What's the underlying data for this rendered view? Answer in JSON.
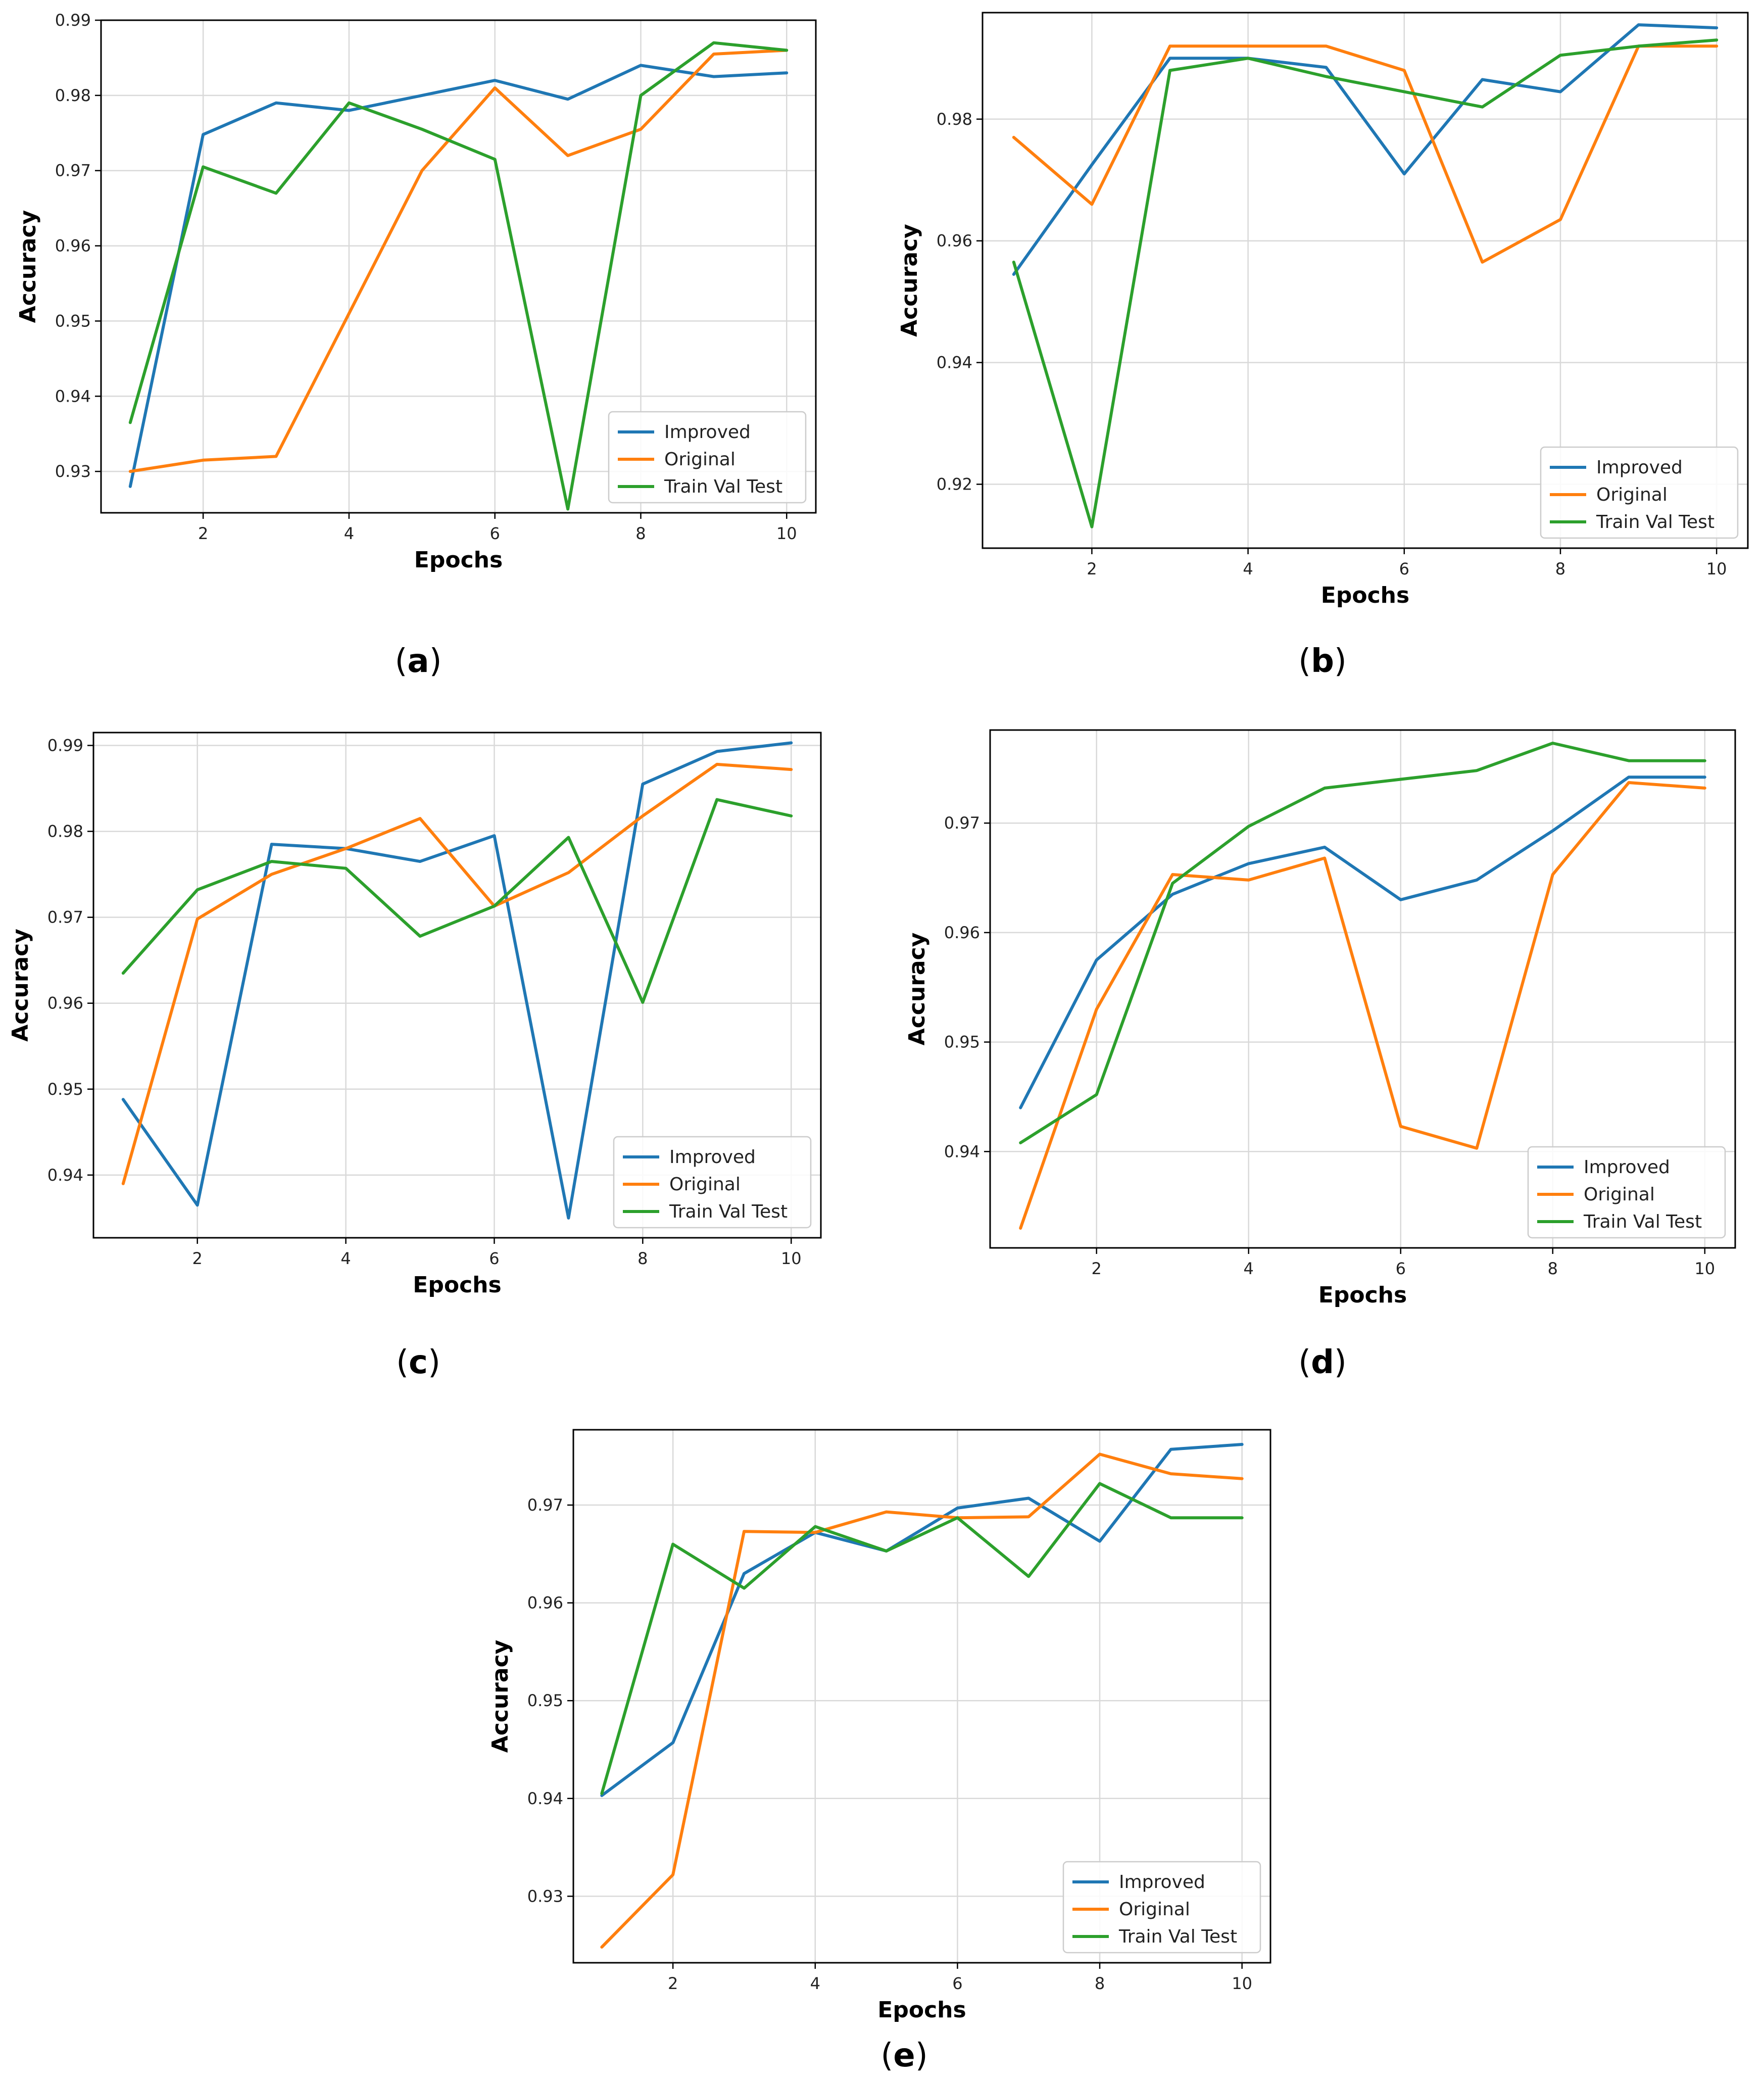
{
  "colors": {
    "Improved": "#1f77b4",
    "Original": "#ff7f0e",
    "Train Val Test": "#2ca02c"
  },
  "chart_data": [
    {
      "id": "a",
      "type": "line",
      "caption": "a",
      "xlabel": "Epochs",
      "ylabel": "Accuracy",
      "xlim": [
        0.6,
        10.4
      ],
      "ylim": [
        0.9245,
        0.99
      ],
      "xticks": [
        2,
        4,
        6,
        8,
        10
      ],
      "xtick_labels": [
        "2",
        "4",
        "6",
        "8",
        "10"
      ],
      "yticks": [
        0.93,
        0.94,
        0.95,
        0.96,
        0.97,
        0.98,
        0.99
      ],
      "ytick_labels": [
        "0.93",
        "0.94",
        "0.95",
        "0.96",
        "0.97",
        "0.98",
        "0.99"
      ],
      "legend": "lower right",
      "x": [
        1,
        2,
        3,
        4,
        5,
        6,
        7,
        8,
        9,
        10
      ],
      "series": [
        {
          "name": "Improved",
          "values": [
            0.928,
            0.9748,
            0.979,
            0.978,
            0.98,
            0.982,
            0.9795,
            0.984,
            0.9825,
            0.983
          ]
        },
        {
          "name": "Original",
          "values": [
            0.93,
            0.9315,
            0.932,
            0.951,
            0.97,
            0.981,
            0.972,
            0.9755,
            0.9855,
            0.986
          ]
        },
        {
          "name": "Train Val Test",
          "values": [
            0.9365,
            0.9705,
            0.967,
            0.979,
            0.9755,
            0.9715,
            0.925,
            0.98,
            0.987,
            0.986
          ]
        }
      ]
    },
    {
      "id": "b",
      "type": "line",
      "caption": "b",
      "xlabel": "Epochs",
      "ylabel": "Accuracy",
      "xlim": [
        0.6,
        10.4
      ],
      "ylim": [
        0.9095,
        0.9975
      ],
      "xticks": [
        2,
        4,
        6,
        8,
        10
      ],
      "xtick_labels": [
        "2",
        "4",
        "6",
        "8",
        "10"
      ],
      "yticks": [
        0.92,
        0.94,
        0.96,
        0.98
      ],
      "ytick_labels": [
        "0.92",
        "0.94",
        "0.96",
        "0.98"
      ],
      "legend": "lower right",
      "x": [
        1,
        2,
        3,
        4,
        5,
        6,
        7,
        8,
        9,
        10
      ],
      "series": [
        {
          "name": "Improved",
          "values": [
            0.9545,
            0.9725,
            0.99,
            0.99,
            0.9885,
            0.971,
            0.9865,
            0.9845,
            0.9955,
            0.995
          ]
        },
        {
          "name": "Original",
          "values": [
            0.977,
            0.966,
            0.992,
            0.992,
            0.992,
            0.988,
            0.9565,
            0.9635,
            0.992,
            0.992
          ]
        },
        {
          "name": "Train Val Test",
          "values": [
            0.9565,
            0.913,
            0.988,
            0.99,
            0.987,
            0.9845,
            0.982,
            0.9905,
            0.992,
            0.993
          ]
        }
      ]
    },
    {
      "id": "c",
      "type": "line",
      "caption": "c",
      "xlabel": "Epochs",
      "ylabel": "Accuracy",
      "xlim": [
        0.6,
        10.4
      ],
      "ylim": [
        0.9327,
        0.9915
      ],
      "xticks": [
        2,
        4,
        6,
        8,
        10
      ],
      "xtick_labels": [
        "2",
        "4",
        "6",
        "8",
        "10"
      ],
      "yticks": [
        0.94,
        0.95,
        0.96,
        0.97,
        0.98,
        0.99
      ],
      "ytick_labels": [
        "0.94",
        "0.95",
        "0.96",
        "0.97",
        "0.98",
        "0.99"
      ],
      "legend": "lower right",
      "x": [
        1,
        2,
        3,
        4,
        5,
        6,
        7,
        8,
        9,
        10
      ],
      "series": [
        {
          "name": "Improved",
          "values": [
            0.9488,
            0.9365,
            0.9785,
            0.978,
            0.9765,
            0.9795,
            0.935,
            0.9855,
            0.9893,
            0.9903
          ]
        },
        {
          "name": "Original",
          "values": [
            0.939,
            0.9698,
            0.975,
            0.978,
            0.9815,
            0.9713,
            0.9752,
            0.9818,
            0.9878,
            0.9872
          ]
        },
        {
          "name": "Train Val Test",
          "values": [
            0.9635,
            0.9732,
            0.9765,
            0.9757,
            0.9678,
            0.9713,
            0.9793,
            0.9601,
            0.9837,
            0.9818
          ]
        }
      ]
    },
    {
      "id": "d",
      "type": "line",
      "caption": "d",
      "xlabel": "Epochs",
      "ylabel": "Accuracy",
      "xlim": [
        0.6,
        10.4
      ],
      "ylim": [
        0.9312,
        0.9785
      ],
      "xticks": [
        2,
        4,
        6,
        8,
        10
      ],
      "xtick_labels": [
        "2",
        "4",
        "6",
        "8",
        "10"
      ],
      "yticks": [
        0.94,
        0.95,
        0.96,
        0.97
      ],
      "ytick_labels": [
        "0.94",
        "0.95",
        "0.96",
        "0.97"
      ],
      "legend": "lower right",
      "x": [
        1,
        2,
        3,
        4,
        5,
        6,
        7,
        8,
        9,
        10
      ],
      "series": [
        {
          "name": "Improved",
          "values": [
            0.944,
            0.9575,
            0.9635,
            0.9663,
            0.9678,
            0.963,
            0.9648,
            0.9693,
            0.9742,
            0.9742
          ]
        },
        {
          "name": "Original",
          "values": [
            0.933,
            0.953,
            0.9653,
            0.9648,
            0.9668,
            0.9423,
            0.9403,
            0.9653,
            0.9737,
            0.9732
          ]
        },
        {
          "name": "Train Val Test",
          "values": [
            0.9408,
            0.9452,
            0.9645,
            0.9697,
            0.9732,
            0.974,
            0.9748,
            0.9773,
            0.9757,
            0.9757
          ]
        }
      ]
    },
    {
      "id": "e",
      "type": "line",
      "caption": "e",
      "xlabel": "Epochs",
      "ylabel": "Accuracy",
      "xlim": [
        0.6,
        10.4
      ],
      "ylim": [
        0.9232,
        0.9777
      ],
      "xticks": [
        2,
        4,
        6,
        8,
        10
      ],
      "xtick_labels": [
        "2",
        "4",
        "6",
        "8",
        "10"
      ],
      "yticks": [
        0.93,
        0.94,
        0.95,
        0.96,
        0.97
      ],
      "ytick_labels": [
        "0.93",
        "0.94",
        "0.95",
        "0.96",
        "0.97"
      ],
      "legend": "lower right",
      "x": [
        1,
        2,
        3,
        4,
        5,
        6,
        7,
        8,
        9,
        10
      ],
      "series": [
        {
          "name": "Improved",
          "values": [
            0.9403,
            0.9457,
            0.963,
            0.9672,
            0.9653,
            0.9697,
            0.9707,
            0.9663,
            0.9757,
            0.9762
          ]
        },
        {
          "name": "Original",
          "values": [
            0.9248,
            0.9322,
            0.9673,
            0.9672,
            0.9693,
            0.9687,
            0.9688,
            0.9752,
            0.9732,
            0.9727
          ]
        },
        {
          "name": "Train Val Test",
          "values": [
            0.9405,
            0.966,
            0.9615,
            0.9678,
            0.9653,
            0.9687,
            0.9627,
            0.9722,
            0.9687,
            0.9687
          ]
        }
      ]
    }
  ]
}
